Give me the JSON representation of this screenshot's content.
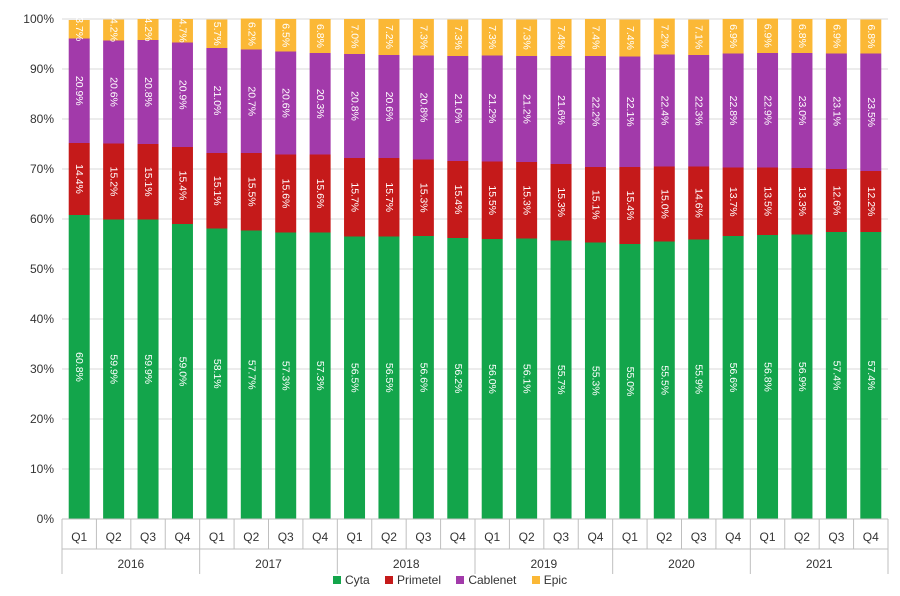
{
  "chart_data": {
    "type": "bar",
    "stacked": true,
    "percent": true,
    "title": "",
    "xlabel": "",
    "ylabel": "",
    "ylim": [
      0,
      100
    ],
    "yticks": [
      "0%",
      "10%",
      "20%",
      "30%",
      "40%",
      "50%",
      "60%",
      "70%",
      "80%",
      "90%",
      "100%"
    ],
    "grid": true,
    "legend_position": "bottom",
    "categories": [
      "Q1",
      "Q2",
      "Q3",
      "Q4",
      "Q1",
      "Q2",
      "Q3",
      "Q4",
      "Q1",
      "Q2",
      "Q3",
      "Q4",
      "Q1",
      "Q2",
      "Q3",
      "Q4",
      "Q1",
      "Q2",
      "Q3",
      "Q4",
      "Q1",
      "Q2",
      "Q3",
      "Q4"
    ],
    "groups": [
      {
        "label": "2016",
        "start": 0,
        "count": 4
      },
      {
        "label": "2017",
        "start": 4,
        "count": 4
      },
      {
        "label": "2018",
        "start": 8,
        "count": 4
      },
      {
        "label": "2019",
        "start": 12,
        "count": 4
      },
      {
        "label": "2020",
        "start": 16,
        "count": 4
      },
      {
        "label": "2021",
        "start": 20,
        "count": 4
      }
    ],
    "series": [
      {
        "name": "Cyta",
        "color": "#13a54b",
        "values": [
          60.8,
          59.9,
          59.9,
          59.0,
          58.1,
          57.7,
          57.3,
          57.3,
          56.5,
          56.5,
          56.6,
          56.2,
          56.0,
          56.1,
          55.7,
          55.3,
          55.0,
          55.5,
          55.9,
          56.6,
          56.8,
          56.9,
          57.4,
          57.4
        ],
        "labels": [
          "60.8%",
          "59.9%",
          "59.9%",
          "59.0%",
          "58.1%",
          "57.7%",
          "57.3%",
          "57.3%",
          "56.5%",
          "56.5%",
          "56.6%",
          "56.2%",
          "56.0%",
          "56.1%",
          "55.7%",
          "55.3%",
          "55.0%",
          "55.5%",
          "55.9%",
          "56.6%",
          "56.8%",
          "56.9%",
          "57.4%",
          "57.4%"
        ]
      },
      {
        "name": "Primetel",
        "color": "#c51a1a",
        "values": [
          14.4,
          15.2,
          15.1,
          15.4,
          15.1,
          15.5,
          15.6,
          15.6,
          15.7,
          15.7,
          15.3,
          15.4,
          15.5,
          15.3,
          15.3,
          15.1,
          15.4,
          15.0,
          14.6,
          13.7,
          13.5,
          13.3,
          12.6,
          12.2
        ],
        "labels": [
          "14.4%",
          "15.2%",
          "15.1%",
          "15.4%",
          "15.1%",
          "15.5%",
          "15.6%",
          "15.6%",
          "15.7%",
          "15.7%",
          "15.3%",
          "15.4%",
          "15.5%",
          "15.3%",
          "15.3%",
          "15.1%",
          "15.4%",
          "15.0%",
          "14.6%",
          "13.7%",
          "13.5%",
          "13.3%",
          "12.6%",
          "12.2%"
        ]
      },
      {
        "name": "Cablenet",
        "color": "#a23aaa",
        "values": [
          20.9,
          20.6,
          20.8,
          20.9,
          21.0,
          20.7,
          20.6,
          20.3,
          20.8,
          20.6,
          20.8,
          21.0,
          21.2,
          21.2,
          21.6,
          22.2,
          22.1,
          22.4,
          22.3,
          22.8,
          22.9,
          23.0,
          23.1,
          23.5
        ],
        "labels": [
          "20.9%",
          "20.6%",
          "20.8%",
          "20.9%",
          "21.0%",
          "20.7%",
          "20.6%",
          "20.3%",
          "20.8%",
          "20.6%",
          "20.8%",
          "21.0%",
          "21.2%",
          "21.2%",
          "21.6%",
          "22.2%",
          "22.1%",
          "22.4%",
          "22.3%",
          "22.8%",
          "22.9%",
          "23.0%",
          "23.1%",
          "23.5%"
        ]
      },
      {
        "name": "Epic",
        "color": "#fbb836",
        "values": [
          3.7,
          4.2,
          4.2,
          4.7,
          5.7,
          6.2,
          6.5,
          6.8,
          7.0,
          7.2,
          7.3,
          7.3,
          7.3,
          7.3,
          7.4,
          7.4,
          7.4,
          7.2,
          7.1,
          6.9,
          6.9,
          6.8,
          6.9,
          6.8
        ],
        "labels": [
          "3.7%",
          "4.2%",
          "4.2%",
          "4.7%",
          "5.7%",
          "6.2%",
          "6.5%",
          "6.8%",
          "7.0%",
          "7.2%",
          "7.3%",
          "7.3%",
          "7.3%",
          "7.3%",
          "7.4%",
          "7.4%",
          "7.4%",
          "7.2%",
          "7.1%",
          "6.9%",
          "6.9%",
          "6.8%",
          "6.9%",
          "6.8%"
        ]
      }
    ]
  }
}
